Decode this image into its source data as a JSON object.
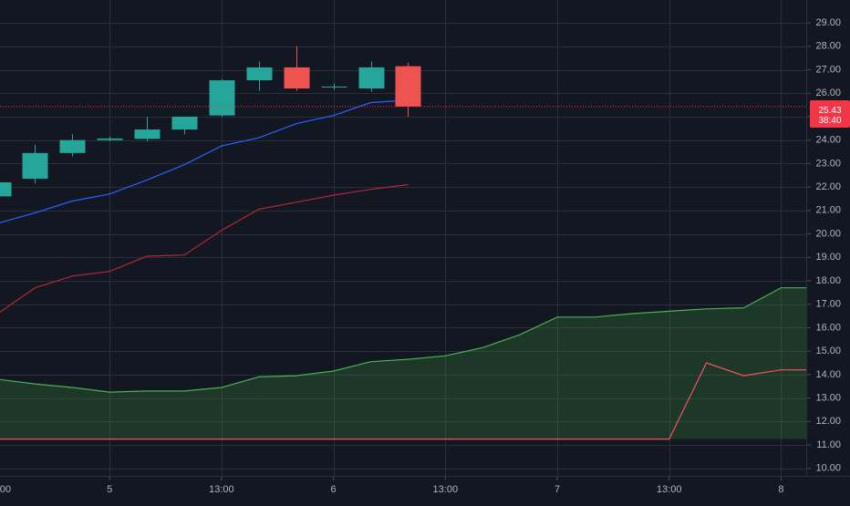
{
  "chart_data": {
    "type": "candlestick",
    "grid": true,
    "y_axis": {
      "min": 9.6,
      "max": 29.9,
      "ticks": [
        {
          "value": 10,
          "label": "10.00"
        },
        {
          "value": 11,
          "label": "11.00"
        },
        {
          "value": 12,
          "label": "12.00"
        },
        {
          "value": 13,
          "label": "13.00"
        },
        {
          "value": 14,
          "label": "14.00"
        },
        {
          "value": 15,
          "label": "15.00"
        },
        {
          "value": 16,
          "label": "16.00"
        },
        {
          "value": 17,
          "label": "17.00"
        },
        {
          "value": 18,
          "label": "18.00"
        },
        {
          "value": 19,
          "label": "19.00"
        },
        {
          "value": 20,
          "label": "20.00"
        },
        {
          "value": 21,
          "label": "21.00"
        },
        {
          "value": 22,
          "label": "22.00"
        },
        {
          "value": 23,
          "label": "23.00"
        },
        {
          "value": 24,
          "label": "24.00"
        },
        {
          "value": 25,
          "label": "25.00"
        },
        {
          "value": 26,
          "label": "26.00"
        },
        {
          "value": 27,
          "label": "27.00"
        },
        {
          "value": 28,
          "label": "28.00"
        },
        {
          "value": 29,
          "label": "29.00"
        }
      ]
    },
    "x_axis": {
      "min": 0,
      "max": 21.5,
      "ticks": [
        {
          "value": 0,
          "label": "00"
        },
        {
          "value": 3,
          "label": "5"
        },
        {
          "value": 6,
          "label": "13:00"
        },
        {
          "value": 9,
          "label": "6"
        },
        {
          "value": 12,
          "label": "13:00"
        },
        {
          "value": 15,
          "label": "7"
        },
        {
          "value": 18,
          "label": "13:00"
        },
        {
          "value": 21,
          "label": "8"
        }
      ]
    },
    "candles": [
      {
        "x": 0,
        "open": 21.6,
        "high": 22.3,
        "low": 21.5,
        "close": 22.2
      },
      {
        "x": 1,
        "open": 22.35,
        "high": 23.8,
        "low": 22.15,
        "close": 23.45
      },
      {
        "x": 2,
        "open": 23.45,
        "high": 24.25,
        "low": 23.3,
        "close": 24.0
      },
      {
        "x": 3,
        "open": 24.0,
        "high": 24.15,
        "low": 23.95,
        "close": 24.07
      },
      {
        "x": 4,
        "open": 24.05,
        "high": 25.0,
        "low": 23.95,
        "close": 24.45
      },
      {
        "x": 5,
        "open": 24.45,
        "high": 25.0,
        "low": 24.25,
        "close": 25.0
      },
      {
        "x": 6,
        "open": 25.05,
        "high": 26.6,
        "low": 25.0,
        "close": 26.55
      },
      {
        "x": 7,
        "open": 26.55,
        "high": 27.35,
        "low": 26.1,
        "close": 27.1
      },
      {
        "x": 8,
        "open": 27.1,
        "high": 28.0,
        "low": 26.1,
        "close": 26.2
      },
      {
        "x": 9,
        "open": 26.25,
        "high": 26.4,
        "low": 26.15,
        "close": 26.28
      },
      {
        "x": 10,
        "open": 26.2,
        "high": 27.35,
        "low": 26.05,
        "close": 27.1
      },
      {
        "x": 11,
        "open": 27.15,
        "high": 27.3,
        "low": 25.0,
        "close": 25.43
      }
    ],
    "series": [
      {
        "color": "#2962ff",
        "x": [
          0,
          1,
          2,
          3,
          4,
          5,
          6,
          7,
          8,
          9,
          10,
          11
        ],
        "values": [
          20.45,
          20.9,
          21.4,
          21.7,
          22.3,
          22.95,
          23.75,
          24.1,
          24.7,
          25.05,
          25.6,
          25.7
        ]
      },
      {
        "color": "#b22833",
        "x": [
          0,
          1,
          2,
          3,
          4,
          5,
          6,
          7,
          8,
          9,
          10,
          11
        ],
        "values": [
          16.6,
          17.7,
          18.2,
          18.4,
          19.05,
          19.1,
          20.15,
          21.05,
          21.35,
          21.65,
          21.9,
          22.1
        ]
      },
      {
        "color": "#4caf50",
        "fill": "rgba(56,142,60,0.28)",
        "fill_to": 11.25,
        "x": [
          0,
          1,
          2,
          3,
          4,
          5,
          6,
          7,
          8,
          9,
          10,
          11,
          12,
          13,
          14,
          15,
          16,
          17,
          18,
          19,
          20,
          21,
          21.9
        ],
        "values": [
          13.8,
          13.6,
          13.45,
          13.25,
          13.3,
          13.3,
          13.45,
          13.9,
          13.95,
          14.15,
          14.55,
          14.65,
          14.8,
          15.15,
          15.7,
          16.45,
          16.45,
          16.6,
          16.7,
          16.8,
          16.85,
          17.7,
          17.7
        ]
      },
      {
        "color": "#f7525f",
        "x": [
          0,
          18,
          19,
          20,
          21,
          21.9
        ],
        "values": [
          11.25,
          11.25,
          14.5,
          13.95,
          14.2,
          14.2
        ]
      }
    ],
    "price_line": {
      "value": 25.43,
      "color": "#f23645"
    },
    "price_label": {
      "price": "25.43",
      "countdown": "38:40",
      "color": "#f23645"
    },
    "colors": {
      "background": "#131722",
      "grid": "#2a2e39",
      "up": "#26a69a",
      "down": "#ef5350",
      "axis_text": "#b2b5be"
    }
  }
}
